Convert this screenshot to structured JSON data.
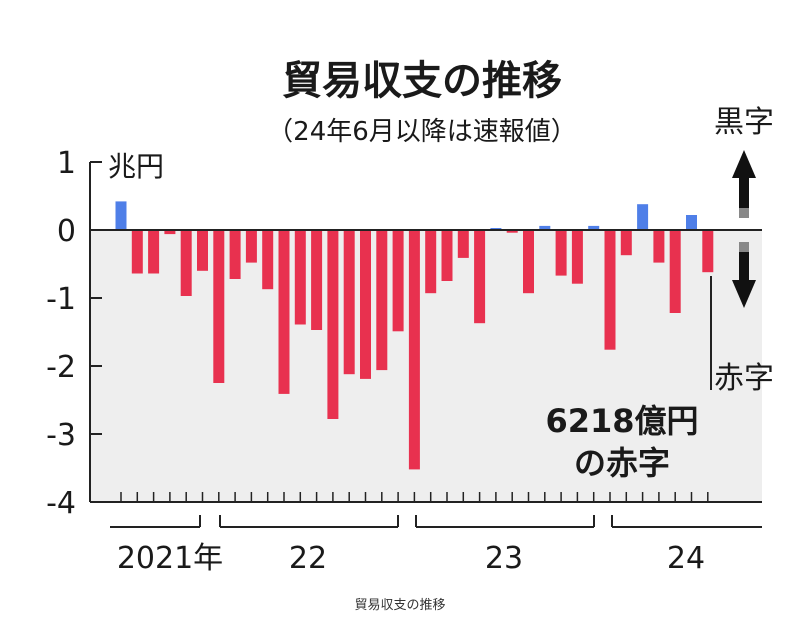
{
  "chart_data": {
    "type": "bar",
    "title": "貿易収支の推移",
    "subtitle": "（24年6月以降は速報値）",
    "unit_label": "兆円",
    "y_ticks": [
      "1",
      "0",
      "-1",
      "-2",
      "-3",
      "-4"
    ],
    "ylim": [
      -4,
      1
    ],
    "surplus_label": "黒字",
    "deficit_label": "赤字",
    "annotation_line1": "6218億円",
    "annotation_line2": "の赤字",
    "year_labels": [
      "2021年",
      "22",
      "23",
      "24"
    ],
    "start_month": "2021-08",
    "end_month": "2024-08",
    "values": [
      0.42,
      -0.64,
      -0.64,
      -0.06,
      -0.97,
      -0.6,
      -2.25,
      -0.72,
      -0.48,
      -0.87,
      -2.41,
      -1.39,
      -1.47,
      -2.78,
      -2.12,
      -2.19,
      -2.06,
      -1.49,
      -3.52,
      -0.93,
      -0.75,
      -0.41,
      -1.37,
      0.03,
      -0.04,
      -0.93,
      0.06,
      -0.67,
      -0.79,
      0.06,
      -1.76,
      -0.37,
      0.38,
      -0.48,
      -1.22,
      0.22,
      -0.62
    ],
    "colors": {
      "surplus": "#4f7fe8",
      "deficit": "#e8314f",
      "plot_bg": "#eeeeee"
    }
  },
  "caption": "貿易収支の推移"
}
